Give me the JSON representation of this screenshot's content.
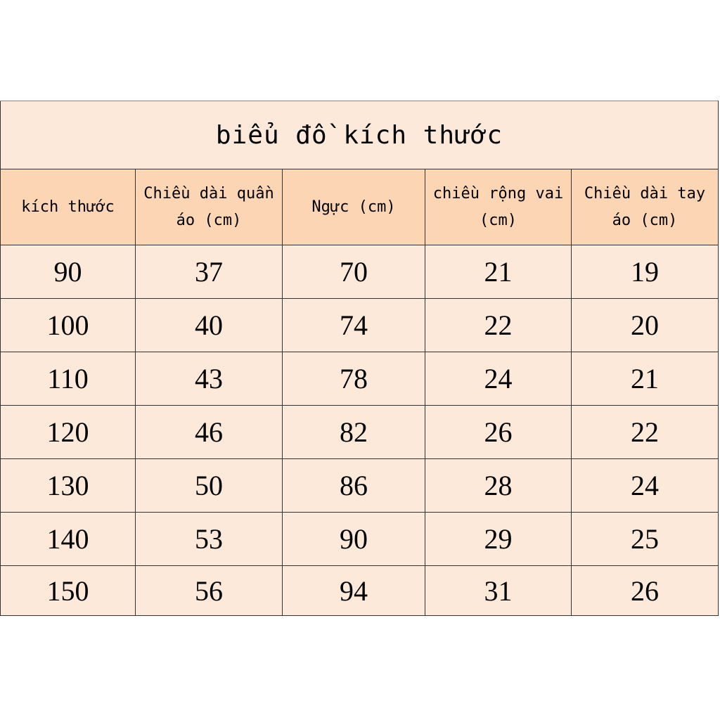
{
  "title": "biểu đồ kích thước",
  "colors": {
    "title_bg": "#fde9d9",
    "header_bg": "#fcd5b4",
    "row_bg": "#fde9d9"
  },
  "columns": [
    "kích thước",
    "Chiều dài quần áo (cm)",
    "Ngực (cm)",
    "chiều rộng vai (cm)",
    "Chiều dài tay áo (cm)"
  ],
  "rows": [
    [
      "90",
      "37",
      "70",
      "21",
      "19"
    ],
    [
      "100",
      "40",
      "74",
      "22",
      "20"
    ],
    [
      "110",
      "43",
      "78",
      "24",
      "21"
    ],
    [
      "120",
      "46",
      "82",
      "26",
      "22"
    ],
    [
      "130",
      "50",
      "86",
      "28",
      "24"
    ],
    [
      "140",
      "53",
      "90",
      "29",
      "25"
    ],
    [
      "150",
      "56",
      "94",
      "31",
      "26"
    ]
  ]
}
